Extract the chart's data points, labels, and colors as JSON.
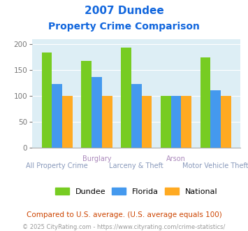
{
  "title_line1": "2007 Dundee",
  "title_line2": "Property Crime Comparison",
  "x_top_labels": [
    "",
    "Burglary",
    "",
    "Arson",
    ""
  ],
  "x_bottom_labels": [
    "All Property Crime",
    "",
    "Larceny & Theft",
    "",
    "Motor Vehicle Theft"
  ],
  "groups": [
    {
      "label": "All Property Crime",
      "dundee": 185,
      "florida": 124,
      "national": 100
    },
    {
      "label": "Burglary",
      "dundee": 168,
      "florida": 137,
      "national": 100
    },
    {
      "label": "Larceny & Theft",
      "dundee": 194,
      "florida": 124,
      "national": 100
    },
    {
      "label": "Arson",
      "dundee": 100,
      "florida": 100,
      "national": 100
    },
    {
      "label": "Motor Vehicle Theft",
      "dundee": 175,
      "florida": 111,
      "national": 100
    }
  ],
  "color_dundee": "#77cc22",
  "color_florida": "#4499ee",
  "color_national": "#ffaa22",
  "ylim": [
    0,
    210
  ],
  "yticks": [
    0,
    50,
    100,
    150,
    200
  ],
  "bg_color": "#ddeef5",
  "title_color": "#1166dd",
  "xlabel_top_color": "#aa88bb",
  "xlabel_bottom_color": "#8899bb",
  "footnote1": "Compared to U.S. average. (U.S. average equals 100)",
  "footnote2": "© 2025 CityRating.com - https://www.cityrating.com/crime-statistics/",
  "footnote1_color": "#cc4400",
  "footnote2_color": "#999999",
  "legend_labels": [
    "Dundee",
    "Florida",
    "National"
  ]
}
